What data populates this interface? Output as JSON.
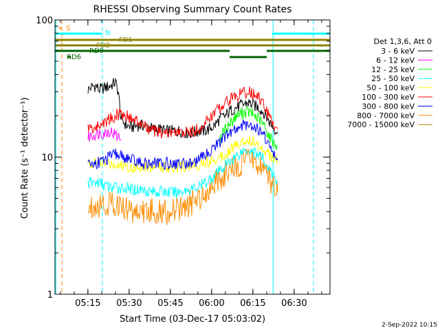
{
  "chart_data": {
    "type": "line",
    "title": "RHESSI Observing Summary Count Rates",
    "xlabel": "Start Time (03-Dec-17 05:03:02)",
    "ylabel": "Count Rate (s⁻¹ detector⁻¹)",
    "yscale": "log",
    "ylim": [
      1,
      100
    ],
    "xlim_minutes": [
      0,
      100
    ],
    "xlim_time": [
      "05:03:02",
      "06:43:02"
    ],
    "x_ticks": [
      {
        "label": "05:15",
        "minute": 11.97
      },
      {
        "label": "05:30",
        "minute": 26.97
      },
      {
        "label": "05:45",
        "minute": 41.97
      },
      {
        "label": "06:00",
        "minute": 56.97
      },
      {
        "label": "06:15",
        "minute": 71.97
      },
      {
        "label": "06:30",
        "minute": 86.97
      }
    ],
    "y_ticks": [
      {
        "label": "1",
        "value": 1
      },
      {
        "label": "10",
        "value": 10
      },
      {
        "label": "100",
        "value": 100
      }
    ],
    "legend_header": "Det 1,3,6, Att 0",
    "legend_placement": "right",
    "series": [
      {
        "name": "3 - 6 keV",
        "color": "#000000",
        "values": [
          [
            12,
            31
          ],
          [
            13,
            32
          ],
          [
            14,
            33
          ],
          [
            15,
            33
          ],
          [
            16,
            31
          ],
          [
            18,
            32
          ],
          [
            20,
            33
          ],
          [
            21,
            34
          ],
          [
            22,
            35
          ],
          [
            23,
            30
          ],
          [
            24,
            19
          ],
          [
            26,
            17
          ],
          [
            28,
            16.5
          ],
          [
            30,
            17
          ],
          [
            32,
            17
          ],
          [
            34,
            16.5
          ],
          [
            36,
            16
          ],
          [
            38,
            16
          ],
          [
            40,
            15.5
          ],
          [
            42,
            15.5
          ],
          [
            44,
            15.5
          ],
          [
            46,
            15.5
          ],
          [
            48,
            15
          ],
          [
            50,
            15
          ],
          [
            52,
            15.5
          ],
          [
            54,
            15.5
          ],
          [
            56,
            16
          ],
          [
            58,
            17
          ],
          [
            60,
            19
          ],
          [
            62,
            20
          ],
          [
            64,
            22
          ],
          [
            66,
            23
          ],
          [
            68,
            24
          ],
          [
            70,
            25
          ],
          [
            72,
            24
          ],
          [
            74,
            23
          ],
          [
            76,
            21
          ],
          [
            78,
            18
          ],
          [
            80,
            16
          ],
          [
            81,
            15
          ]
        ]
      },
      {
        "name": "6 - 12 keV",
        "color": "#ff00ff",
        "values": [
          [
            12,
            14
          ],
          [
            14,
            14.5
          ],
          [
            16,
            15
          ],
          [
            18,
            15
          ],
          [
            20,
            15.5
          ],
          [
            22,
            14.5
          ],
          [
            24,
            13.5
          ]
        ]
      },
      {
        "name": "12 - 25 keV",
        "color": "#00ff00",
        "values": [
          [
            60,
            14
          ],
          [
            62,
            16
          ],
          [
            64,
            18
          ],
          [
            66,
            20
          ],
          [
            68,
            21
          ],
          [
            70,
            21.5
          ],
          [
            72,
            20.5
          ],
          [
            74,
            19
          ],
          [
            76,
            17
          ],
          [
            78,
            14
          ],
          [
            80,
            12.5
          ],
          [
            81,
            12
          ]
        ]
      },
      {
        "name": "25 - 50 keV",
        "color": "#00ffff",
        "values": [
          [
            12,
            6.5
          ],
          [
            16,
            6.5
          ],
          [
            20,
            6
          ],
          [
            24,
            6
          ],
          [
            28,
            5.8
          ],
          [
            32,
            5.8
          ],
          [
            36,
            5.6
          ],
          [
            40,
            5.6
          ],
          [
            44,
            5.5
          ],
          [
            48,
            5.8
          ],
          [
            52,
            6
          ],
          [
            56,
            6.8
          ],
          [
            60,
            8
          ],
          [
            64,
            9.5
          ],
          [
            68,
            11
          ],
          [
            70,
            11.5
          ],
          [
            72,
            11
          ],
          [
            74,
            10.5
          ],
          [
            76,
            9.5
          ],
          [
            78,
            8
          ],
          [
            80,
            7
          ],
          [
            81,
            6.5
          ]
        ]
      },
      {
        "name": "50 - 100 keV",
        "color": "#ffff00",
        "values": [
          [
            12,
            9
          ],
          [
            20,
            9
          ],
          [
            28,
            8.5
          ],
          [
            36,
            8.5
          ],
          [
            44,
            8.5
          ],
          [
            52,
            8.8
          ],
          [
            60,
            10
          ],
          [
            64,
            11.5
          ],
          [
            68,
            13
          ],
          [
            70,
            13.5
          ],
          [
            72,
            13
          ],
          [
            76,
            11.5
          ],
          [
            80,
            9.5
          ],
          [
            81,
            9
          ]
        ]
      },
      {
        "name": "100 - 300 keV",
        "color": "#ff0000",
        "values": [
          [
            12,
            16.5
          ],
          [
            14,
            16
          ],
          [
            16,
            17
          ],
          [
            18,
            18
          ],
          [
            20,
            19
          ],
          [
            22,
            20
          ],
          [
            24,
            21
          ],
          [
            26,
            20
          ],
          [
            28,
            19
          ],
          [
            30,
            18
          ],
          [
            32,
            17
          ],
          [
            34,
            16
          ],
          [
            36,
            15.5
          ],
          [
            38,
            15
          ],
          [
            40,
            15
          ],
          [
            42,
            15
          ],
          [
            44,
            15
          ],
          [
            46,
            15
          ],
          [
            48,
            15
          ],
          [
            50,
            15.5
          ],
          [
            52,
            16
          ],
          [
            54,
            17
          ],
          [
            56,
            19
          ],
          [
            58,
            21
          ],
          [
            60,
            23
          ],
          [
            62,
            25
          ],
          [
            64,
            27
          ],
          [
            66,
            28
          ],
          [
            68,
            29
          ],
          [
            70,
            30
          ],
          [
            72,
            29
          ],
          [
            74,
            27
          ],
          [
            76,
            24
          ],
          [
            78,
            19
          ],
          [
            80,
            17
          ],
          [
            81,
            16
          ]
        ]
      },
      {
        "name": "300 - 800 keV",
        "color": "#0000ff",
        "values": [
          [
            12,
            8.8
          ],
          [
            14,
            9
          ],
          [
            16,
            9.2
          ],
          [
            18,
            9.5
          ],
          [
            20,
            10
          ],
          [
            22,
            10.5
          ],
          [
            24,
            10.2
          ],
          [
            26,
            9.8
          ],
          [
            28,
            9.5
          ],
          [
            30,
            9.2
          ],
          [
            32,
            9
          ],
          [
            34,
            9
          ],
          [
            36,
            9
          ],
          [
            38,
            9
          ],
          [
            40,
            9
          ],
          [
            42,
            9
          ],
          [
            44,
            9
          ],
          [
            46,
            9
          ],
          [
            48,
            9
          ],
          [
            50,
            9.2
          ],
          [
            52,
            9.5
          ],
          [
            54,
            10
          ],
          [
            56,
            11
          ],
          [
            58,
            12
          ],
          [
            60,
            13
          ],
          [
            62,
            14
          ],
          [
            64,
            15
          ],
          [
            66,
            16
          ],
          [
            68,
            17
          ],
          [
            70,
            17.5
          ],
          [
            72,
            17
          ],
          [
            74,
            16
          ],
          [
            76,
            14.5
          ],
          [
            78,
            12
          ],
          [
            80,
            10
          ],
          [
            81,
            9.5
          ]
        ]
      },
      {
        "name": "800 - 7000 keV",
        "color": "#ff8c00",
        "values": [
          [
            12,
            4.2
          ],
          [
            14,
            4.5
          ],
          [
            16,
            4.5
          ],
          [
            18,
            4.5
          ],
          [
            20,
            4.6
          ],
          [
            22,
            4.6
          ],
          [
            24,
            4.4
          ],
          [
            26,
            4.2
          ],
          [
            28,
            4.1
          ],
          [
            30,
            4.0
          ],
          [
            32,
            4.0
          ],
          [
            34,
            4.0
          ],
          [
            36,
            4.0
          ],
          [
            38,
            4.0
          ],
          [
            40,
            4.0
          ],
          [
            42,
            4.0
          ],
          [
            44,
            4.1
          ],
          [
            46,
            4.2
          ],
          [
            48,
            4.4
          ],
          [
            50,
            4.7
          ],
          [
            52,
            5.0
          ],
          [
            54,
            5.5
          ],
          [
            56,
            6.0
          ],
          [
            58,
            6.5
          ],
          [
            60,
            7.0
          ],
          [
            62,
            7.5
          ],
          [
            64,
            8.0
          ],
          [
            66,
            8.5
          ],
          [
            68,
            9.0
          ],
          [
            70,
            9.5
          ],
          [
            72,
            9.5
          ],
          [
            74,
            9.0
          ],
          [
            76,
            8.0
          ],
          [
            78,
            7.0
          ],
          [
            80,
            6.0
          ],
          [
            81,
            5.5
          ]
        ]
      },
      {
        "name": "7000 - 15000 keV",
        "color": "#b8860b",
        "values": []
      }
    ],
    "flags": [
      {
        "label": "FD1",
        "color": "#8b8000",
        "segments": [
          [
            0,
            100
          ]
        ]
      },
      {
        "label": "FD2",
        "color": "#8b8000",
        "segments": [
          [
            0,
            100
          ]
        ]
      },
      {
        "label": "RD9",
        "color": "#006400",
        "segments": [
          [
            0,
            63.5
          ],
          [
            77,
            100
          ]
        ]
      },
      {
        "label": "RD6",
        "color": "#006400",
        "segments": [
          [
            4.6,
            5.8
          ],
          [
            63.5,
            77
          ]
        ]
      },
      {
        "label": "N",
        "color": "#00ffff",
        "segments": [
          [
            0,
            17
          ],
          [
            79,
            100
          ]
        ]
      },
      {
        "label": "S",
        "color": "#ff8c00",
        "segments": [
          [
            1.6,
            2.2
          ]
        ]
      }
    ],
    "vlines": [
      {
        "minute": 0.3,
        "color": "#00ffff",
        "style": "solid"
      },
      {
        "minute": 2.5,
        "color": "#ff8c00",
        "style": "dashed"
      },
      {
        "minute": 17.2,
        "color": "#00ffff",
        "style": "dashed"
      },
      {
        "minute": 79.3,
        "color": "#00ffff",
        "style": "solid"
      },
      {
        "minute": 94,
        "color": "#00ffff",
        "style": "dashed"
      }
    ]
  },
  "footer": {
    "date": "2-Sep-2022 10:15"
  }
}
